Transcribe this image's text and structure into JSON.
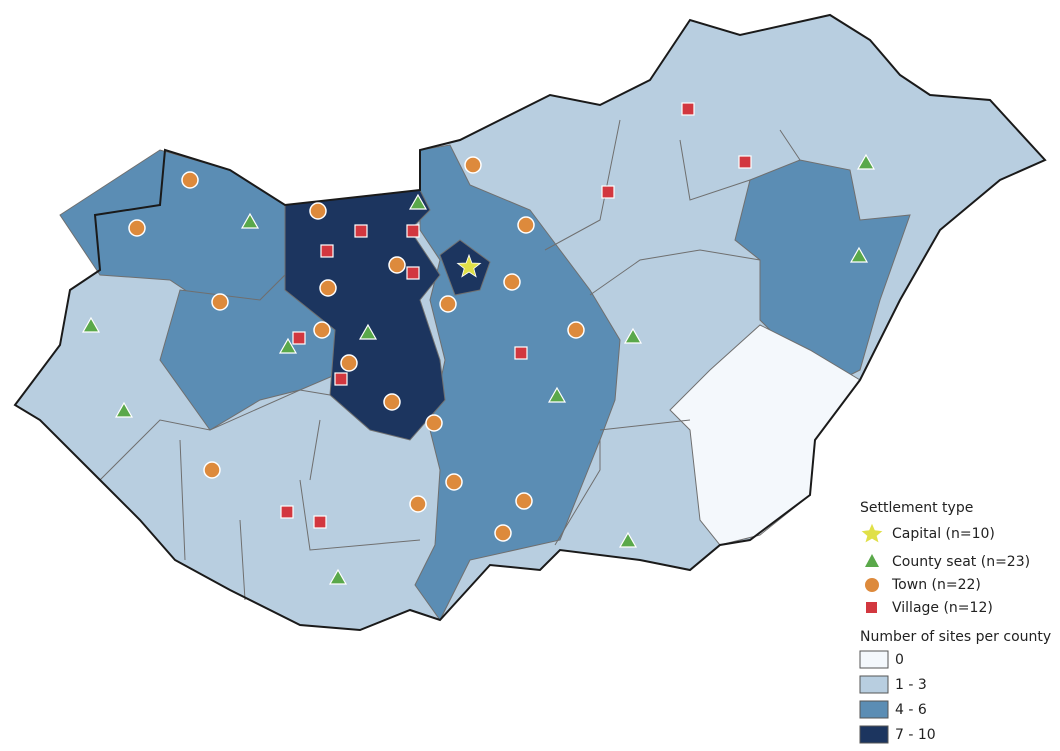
{
  "legend": {
    "settlement_title": "Settlement type",
    "settlement_items": [
      "Capital (n=10)",
      "County seat (n=23)",
      "Town (n=22)",
      "Village (n=12)"
    ],
    "count_title": "Number of sites per county",
    "count_items": [
      "0",
      "1 - 3",
      "4 - 6",
      "7 - 10"
    ]
  }
}
